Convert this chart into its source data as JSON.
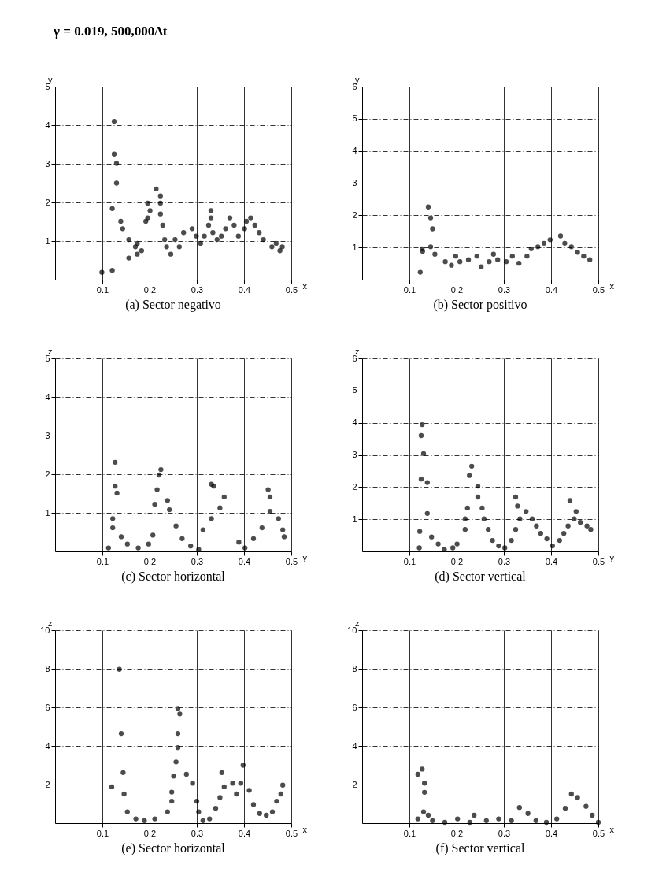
{
  "chart_data": [
    {
      "type": "scatter",
      "title": "(a) Sector negativo",
      "annotations": [
        "γ = 0.019,  500,000Δt"
      ],
      "xlabel": "x",
      "ylabel": "y",
      "xlim": [
        0,
        0.5
      ],
      "ylim": [
        0,
        5
      ],
      "xticks": [
        0.1,
        0.2,
        0.3,
        0.4,
        0.5
      ],
      "yticks": [
        1,
        2,
        3,
        4,
        5
      ],
      "grid": true,
      "marker": "circle",
      "color": "#000000",
      "x": [
        0.099,
        0.121,
        0.121,
        0.125,
        0.125,
        0.13,
        0.13,
        0.139,
        0.143,
        0.156,
        0.156,
        0.17,
        0.174,
        0.174,
        0.183,
        0.192,
        0.196,
        0.196,
        0.201,
        0.214,
        0.223,
        0.223,
        0.223,
        0.228,
        0.232,
        0.236,
        0.245,
        0.254,
        0.263,
        0.272,
        0.29,
        0.299,
        0.308,
        0.316,
        0.325,
        0.33,
        0.33,
        0.334,
        0.343,
        0.352,
        0.361,
        0.37,
        0.379,
        0.388,
        0.401,
        0.405,
        0.414,
        0.423,
        0.432,
        0.441,
        0.459,
        0.468,
        0.476,
        0.481
      ],
      "values": [
        0.19,
        0.24,
        1.84,
        4.1,
        3.25,
        3.01,
        2.5,
        1.51,
        1.32,
        1.04,
        0.56,
        0.85,
        0.66,
        0.94,
        0.75,
        1.51,
        1.98,
        1.6,
        1.79,
        2.35,
        2.17,
        1.98,
        1.7,
        1.41,
        1.04,
        0.85,
        0.66,
        1.04,
        0.85,
        1.22,
        1.32,
        1.13,
        0.94,
        1.13,
        1.41,
        1.6,
        1.79,
        1.22,
        1.04,
        1.13,
        1.32,
        1.6,
        1.41,
        1.13,
        1.32,
        1.51,
        1.6,
        1.41,
        1.22,
        1.04,
        0.85,
        0.94,
        0.75,
        0.85
      ]
    },
    {
      "type": "scatter",
      "title": "(b) Sector positivo",
      "xlabel": "x",
      "ylabel": "y",
      "xlim": [
        0,
        0.5
      ],
      "ylim": [
        0,
        6
      ],
      "xticks": [
        0.1,
        0.2,
        0.3,
        0.4,
        0.5
      ],
      "yticks": [
        1,
        2,
        3,
        4,
        5,
        6
      ],
      "grid": true,
      "marker": "circle",
      "color": "#000000",
      "x": [
        0.123,
        0.127,
        0.128,
        0.14,
        0.145,
        0.149,
        0.145,
        0.154,
        0.176,
        0.189,
        0.198,
        0.207,
        0.225,
        0.243,
        0.252,
        0.269,
        0.278,
        0.287,
        0.305,
        0.318,
        0.332,
        0.349,
        0.358,
        0.372,
        0.385,
        0.398,
        0.42,
        0.429,
        0.443,
        0.456,
        0.469,
        0.482
      ],
      "values": [
        0.23,
        0.96,
        0.88,
        2.26,
        1.92,
        1.58,
        1.02,
        0.79,
        0.56,
        0.45,
        0.73,
        0.56,
        0.62,
        0.73,
        0.4,
        0.56,
        0.79,
        0.62,
        0.56,
        0.73,
        0.51,
        0.73,
        0.96,
        1.02,
        1.13,
        1.24,
        1.36,
        1.13,
        1.02,
        0.85,
        0.73,
        0.62
      ]
    },
    {
      "type": "scatter",
      "title": "(c) Sector horizontal",
      "xlabel": "y",
      "ylabel": "z",
      "xlim": [
        0,
        0.5
      ],
      "ylim": [
        0,
        5
      ],
      "xticks": [
        0.1,
        0.2,
        0.3,
        0.4,
        0.5
      ],
      "yticks": [
        1,
        2,
        3,
        4,
        5
      ],
      "grid": true,
      "marker": "circle",
      "color": "#000000",
      "x": [
        0.113,
        0.122,
        0.122,
        0.131,
        0.127,
        0.127,
        0.14,
        0.153,
        0.176,
        0.198,
        0.207,
        0.211,
        0.216,
        0.22,
        0.224,
        0.238,
        0.242,
        0.256,
        0.269,
        0.287,
        0.304,
        0.313,
        0.331,
        0.349,
        0.358,
        0.336,
        0.331,
        0.389,
        0.402,
        0.42,
        0.438,
        0.455,
        0.455,
        0.451,
        0.473,
        0.482,
        0.485
      ],
      "values": [
        0.09,
        0.61,
        0.85,
        1.51,
        1.69,
        2.31,
        0.38,
        0.19,
        0.09,
        0.19,
        0.42,
        1.22,
        1.6,
        1.98,
        2.12,
        1.32,
        1.08,
        0.66,
        0.33,
        0.14,
        0.05,
        0.56,
        0.85,
        1.13,
        1.41,
        1.69,
        1.74,
        0.24,
        0.09,
        0.33,
        0.61,
        1.04,
        1.41,
        1.6,
        0.85,
        0.56,
        0.38
      ]
    },
    {
      "type": "scatter",
      "title": "(d) Sector vertical",
      "xlabel": "y",
      "ylabel": "z",
      "xlim": [
        0,
        0.5
      ],
      "ylim": [
        0,
        6
      ],
      "xticks": [
        0.1,
        0.2,
        0.3,
        0.4,
        0.5
      ],
      "yticks": [
        1,
        2,
        3,
        4,
        5,
        6
      ],
      "grid": true,
      "marker": "circle",
      "color": "#000000",
      "x": [
        0.127,
        0.125,
        0.13,
        0.125,
        0.138,
        0.138,
        0.122,
        0.121,
        0.147,
        0.161,
        0.174,
        0.192,
        0.201,
        0.218,
        0.218,
        0.223,
        0.227,
        0.232,
        0.245,
        0.245,
        0.254,
        0.258,
        0.267,
        0.276,
        0.289,
        0.302,
        0.316,
        0.325,
        0.334,
        0.329,
        0.325,
        0.347,
        0.36,
        0.369,
        0.378,
        0.391,
        0.403,
        0.418,
        0.427,
        0.436,
        0.44,
        0.453,
        0.449,
        0.462,
        0.476,
        0.484
      ],
      "values": [
        3.94,
        3.6,
        3.04,
        2.25,
        2.14,
        1.18,
        0.62,
        0.11,
        0.45,
        0.23,
        0.06,
        0.11,
        0.23,
        0.68,
        1.01,
        1.35,
        2.36,
        2.65,
        2.03,
        1.69,
        1.35,
        1.01,
        0.68,
        0.34,
        0.17,
        0.11,
        0.34,
        0.68,
        1.01,
        1.41,
        1.69,
        1.24,
        1.01,
        0.79,
        0.56,
        0.39,
        0.17,
        0.34,
        0.56,
        0.79,
        1.58,
        1.24,
        1.01,
        0.9,
        0.79,
        0.68
      ]
    },
    {
      "type": "scatter",
      "title": "(e) Sector horizontal",
      "xlabel": "x",
      "ylabel": "z",
      "xlim": [
        0,
        0.5
      ],
      "ylim": [
        0,
        10
      ],
      "xticks": [
        0.1,
        0.2,
        0.3,
        0.4,
        0.5
      ],
      "yticks": [
        2,
        4,
        6,
        8,
        10
      ],
      "grid": true,
      "marker": "circle",
      "color": "#000000",
      "x": [
        0.12,
        0.136,
        0.14,
        0.144,
        0.146,
        0.153,
        0.171,
        0.189,
        0.211,
        0.238,
        0.247,
        0.247,
        0.251,
        0.256,
        0.26,
        0.26,
        0.264,
        0.26,
        0.278,
        0.291,
        0.3,
        0.304,
        0.313,
        0.327,
        0.34,
        0.349,
        0.358,
        0.353,
        0.376,
        0.384,
        0.393,
        0.398,
        0.411,
        0.42,
        0.433,
        0.447,
        0.46,
        0.469,
        0.478,
        0.482
      ],
      "values": [
        1.88,
        7.97,
        4.65,
        2.62,
        1.51,
        0.59,
        0.22,
        0.13,
        0.22,
        0.59,
        1.14,
        1.61,
        2.44,
        3.17,
        3.91,
        4.65,
        5.66,
        5.94,
        2.53,
        2.07,
        1.14,
        0.59,
        0.13,
        0.22,
        0.77,
        1.33,
        1.88,
        2.62,
        2.07,
        1.51,
        2.07,
        3.0,
        1.7,
        0.96,
        0.5,
        0.41,
        0.59,
        1.14,
        1.51,
        1.97
      ]
    },
    {
      "type": "scatter",
      "title": "(f) Sector vertical",
      "xlabel": "x",
      "ylabel": "z",
      "xlim": [
        0,
        0.5
      ],
      "ylim": [
        0,
        10
      ],
      "xticks": [
        0.1,
        0.2,
        0.3,
        0.4,
        0.5
      ],
      "yticks": [
        2,
        4,
        6,
        8,
        10
      ],
      "grid": true,
      "marker": "circle",
      "color": "#000000",
      "x": [
        0.118,
        0.118,
        0.127,
        0.132,
        0.132,
        0.13,
        0.14,
        0.149,
        0.175,
        0.202,
        0.228,
        0.237,
        0.263,
        0.289,
        0.316,
        0.333,
        0.351,
        0.368,
        0.39,
        0.412,
        0.43,
        0.443,
        0.456,
        0.474,
        0.487,
        0.5
      ],
      "values": [
        2.53,
        0.22,
        2.8,
        2.07,
        1.6,
        0.59,
        0.41,
        0.13,
        0.04,
        0.22,
        0.04,
        0.41,
        0.13,
        0.22,
        0.13,
        0.81,
        0.5,
        0.13,
        0.04,
        0.22,
        0.77,
        1.51,
        1.33,
        0.87,
        0.41,
        0.04
      ]
    }
  ]
}
